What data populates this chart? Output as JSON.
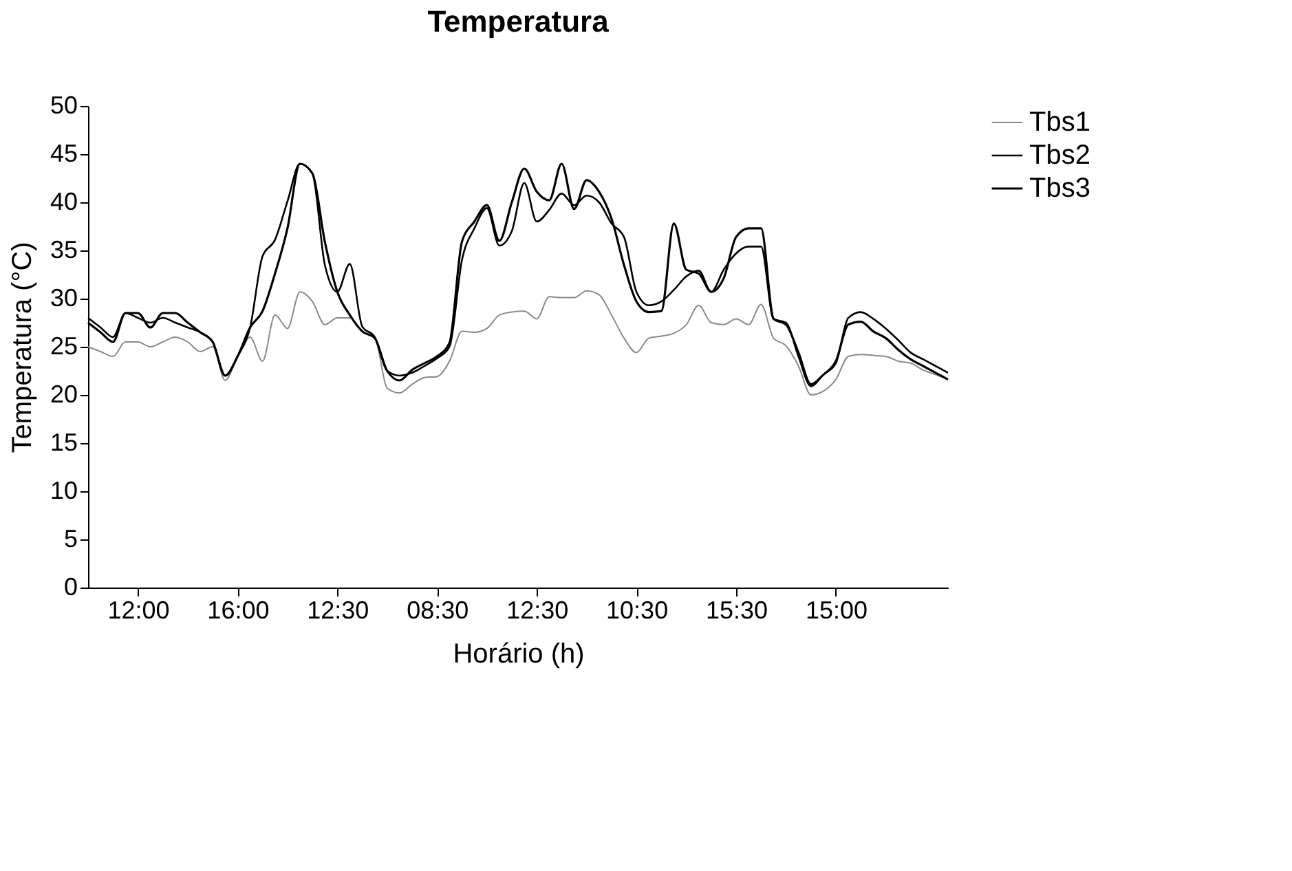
{
  "chart_data": {
    "type": "line",
    "title": "Temperatura",
    "xlabel": "Horário (h)",
    "ylabel": "Temperatura (°C)",
    "categories": [
      null,
      null,
      null,
      null,
      "12:00",
      null,
      null,
      null,
      null,
      null,
      null,
      null,
      "16:00",
      null,
      null,
      null,
      null,
      null,
      null,
      null,
      "12:30",
      null,
      null,
      null,
      null,
      null,
      null,
      null,
      "08:30",
      null,
      null,
      null,
      null,
      null,
      null,
      null,
      "12:30",
      null,
      null,
      null,
      null,
      null,
      null,
      null,
      "10:30",
      null,
      null,
      null,
      null,
      null,
      null,
      null,
      "15:30",
      null,
      null,
      null,
      null,
      null,
      null,
      null,
      "15:00",
      null,
      null,
      null,
      null,
      null,
      null,
      null,
      null,
      null
    ],
    "ylim": [
      0,
      50
    ],
    "yticks": [
      0,
      5,
      10,
      15,
      20,
      25,
      30,
      35,
      40,
      45,
      50
    ],
    "grid": false,
    "legend": "right",
    "line_style": "solid",
    "marker": "none",
    "series": [
      {
        "name": "Tbs1",
        "color": "#8a8a8a",
        "values": [
          25,
          24.5,
          24,
          25.5,
          25.5,
          25,
          25.5,
          26,
          25.5,
          24.5,
          25,
          21.5,
          24,
          26,
          23.5,
          28.3,
          26.9,
          30.7,
          29.7,
          27.3,
          28,
          28,
          26.6,
          26,
          20.7,
          20.2,
          21.1,
          21.8,
          21.9,
          23.5,
          26.6,
          26.5,
          26.9,
          28.3,
          28.6,
          28.7,
          27.9,
          30.2,
          30.1,
          30.1,
          30.8,
          30.4,
          28.3,
          25.9,
          24.4,
          25.9,
          26.1,
          26.4,
          27.3,
          29.3,
          27.5,
          27.3,
          27.9,
          27.3,
          29.4,
          25.9,
          25.1,
          23,
          20,
          20.4,
          21.6,
          24,
          24.2,
          24.1,
          24,
          23.5,
          23.3,
          22.6,
          22.1,
          21.6
        ]
      },
      {
        "name": "Tbs2",
        "color": "#000000",
        "values": [
          28,
          27,
          26,
          28.5,
          28,
          27.5,
          28,
          27.5,
          27,
          26.5,
          25.5,
          22,
          24,
          27,
          34.4,
          36.1,
          40.1,
          44,
          43,
          33.5,
          30.7,
          33.6,
          27.1,
          26,
          22.5,
          22,
          22.3,
          23,
          23.8,
          25,
          34,
          37.3,
          39.4,
          35.5,
          37,
          42,
          38,
          39.2,
          40.9,
          39.7,
          40.7,
          40,
          37.8,
          36.4,
          30.7,
          29.3,
          29.7,
          30.9,
          32.3,
          32.9,
          30.7,
          33,
          34.7,
          35.4,
          35.4,
          27.9,
          27.5,
          24,
          20.9,
          22.1,
          23.3,
          28,
          28.6,
          27.9,
          26.9,
          25.7,
          24.4,
          23.7,
          23,
          22.3
        ]
      },
      {
        "name": "Tbs3",
        "color": "#000000",
        "values": [
          27.5,
          26.5,
          25.5,
          28.5,
          28.5,
          27,
          28.5,
          28.5,
          27.5,
          26.5,
          25.5,
          22,
          24,
          27,
          28.7,
          32.6,
          37.3,
          44,
          43,
          35.9,
          30.7,
          28.3,
          26.6,
          25.9,
          22.5,
          21.5,
          22.6,
          23.3,
          24,
          25.4,
          35.9,
          38,
          39.7,
          36,
          40,
          43.5,
          41.1,
          40.2,
          44,
          39.3,
          42.3,
          41.1,
          38.3,
          33.5,
          29.7,
          28.6,
          28.7,
          37.8,
          33,
          32.6,
          30.7,
          32.1,
          36.4,
          37.3,
          37.3,
          27.9,
          27.3,
          24.4,
          21.1,
          22.1,
          23.5,
          27.3,
          27.6,
          26.6,
          25.9,
          24.7,
          23.7,
          23,
          22.3,
          21.6
        ]
      }
    ]
  }
}
